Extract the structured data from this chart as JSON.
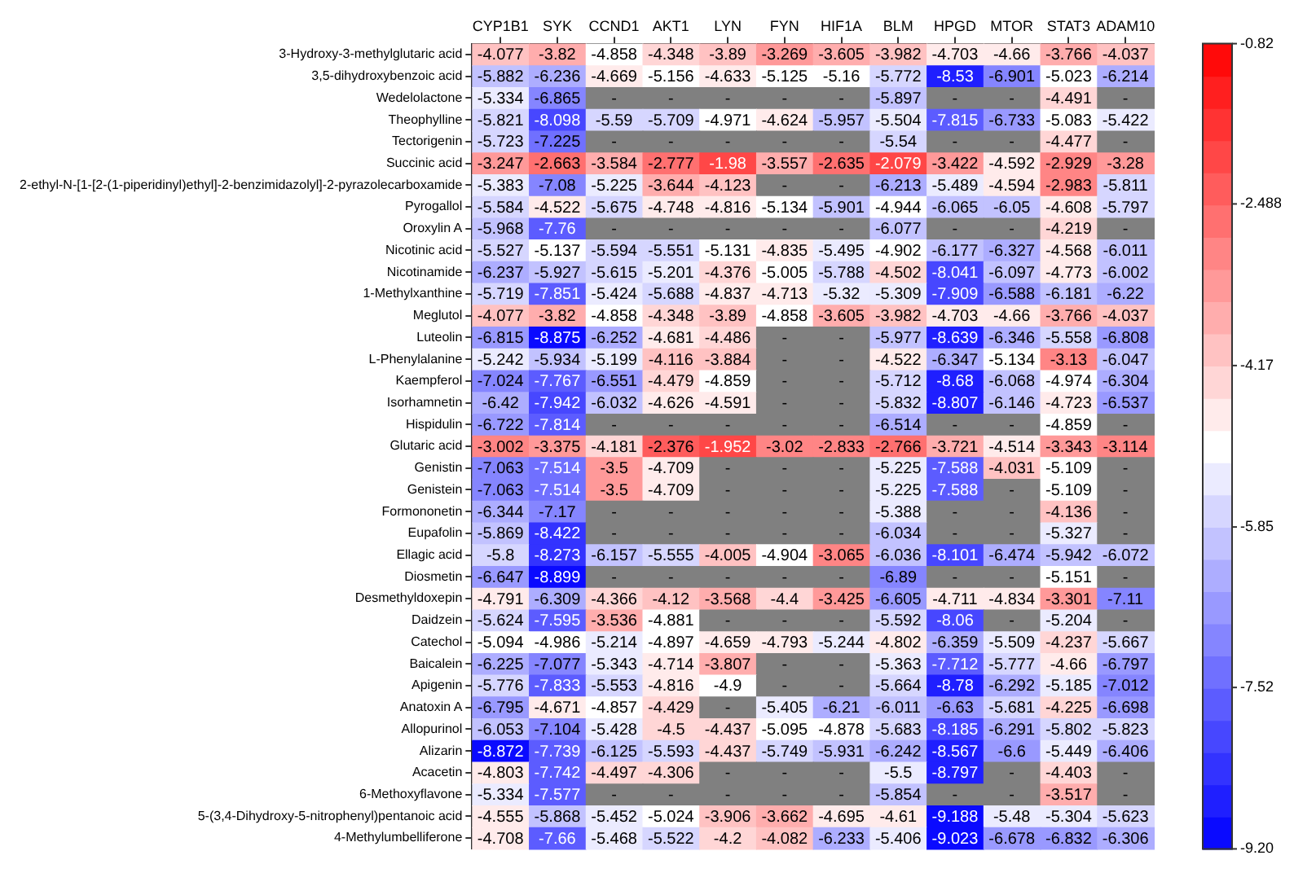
{
  "chart_data": {
    "type": "heatmap",
    "categories": [
      "CYP1B1",
      "SYK",
      "CCND1",
      "AKT1",
      "LYN",
      "FYN",
      "HIF1A",
      "BLM",
      "HPGD",
      "MTOR",
      "STAT3",
      "ADAM10"
    ],
    "y_categories": [
      "3-Hydroxy-3-methylglutaric acid",
      "3,5-dihydroxybenzoic acid",
      "Wedelolactone",
      "Theophylline",
      "Tectorigenin",
      "Succinic acid",
      "2-ethyl-N-[1-[2-(1-piperidinyl)ethyl]-2-benzimidazolyl]-2-pyrazolecarboxamide",
      "Pyrogallol",
      "Oroxylin A",
      "Nicotinic acid",
      "Nicotinamide",
      "1-Methylxanthine",
      "Meglutol",
      "Luteolin",
      "L-Phenylalanine",
      "Kaempferol",
      "Isorhamnetin",
      "Hispidulin",
      "Glutaric acid",
      "Genistin",
      "Genistein",
      "Formononetin",
      "Eupafolin",
      "Ellagic acid",
      "Diosmetin",
      "Desmethyldoxepin",
      "Daidzein",
      "Catechol",
      "Baicalein",
      "Apigenin",
      "Anatoxin A",
      "Allopurinol",
      "Alizarin",
      "Acacetin",
      "6-Methoxyflavone",
      "5-(3,4-Dihydroxy-5-nitrophenyl)pentanoic acid",
      "4-Methylumbelliferone"
    ],
    "cells": [
      [
        -4.077,
        -3.82,
        -4.858,
        -4.348,
        -3.89,
        -3.269,
        -3.605,
        -3.982,
        -4.703,
        -4.66,
        -3.766,
        -4.037
      ],
      [
        -5.882,
        -6.236,
        -4.669,
        -5.156,
        -4.633,
        -5.125,
        -5.16,
        -5.772,
        -8.53,
        -6.901,
        -5.023,
        -6.214
      ],
      [
        -5.334,
        -6.865,
        null,
        null,
        null,
        null,
        null,
        -5.897,
        null,
        null,
        -4.491,
        null
      ],
      [
        -5.821,
        -8.098,
        -5.59,
        -5.709,
        -4.971,
        -4.624,
        -5.957,
        -5.504,
        -7.815,
        -6.733,
        -5.083,
        -5.422
      ],
      [
        -5.723,
        -7.225,
        null,
        null,
        null,
        null,
        null,
        -5.54,
        null,
        null,
        -4.477,
        null
      ],
      [
        -3.247,
        -2.663,
        -3.584,
        -2.777,
        -1.98,
        -3.557,
        -2.635,
        -2.079,
        -3.422,
        -4.592,
        -2.929,
        -3.28
      ],
      [
        -5.383,
        -7.08,
        -5.225,
        -3.644,
        -4.123,
        null,
        null,
        -6.213,
        -5.489,
        -4.594,
        -2.983,
        -5.811
      ],
      [
        -5.584,
        -4.522,
        -5.675,
        -4.748,
        -4.816,
        -5.134,
        -5.901,
        -4.944,
        -6.065,
        -6.05,
        -4.608,
        -5.797
      ],
      [
        -5.968,
        -7.76,
        null,
        null,
        null,
        null,
        null,
        -6.077,
        null,
        null,
        -4.219,
        null
      ],
      [
        -5.527,
        -5.137,
        -5.594,
        -5.551,
        -5.131,
        -4.835,
        -5.495,
        -4.902,
        -6.177,
        -6.327,
        -4.568,
        -6.011
      ],
      [
        -6.237,
        -5.927,
        -5.615,
        -5.201,
        -4.376,
        -5.005,
        -5.788,
        -4.502,
        -8.041,
        -6.097,
        -4.773,
        -6.002
      ],
      [
        -5.719,
        -7.851,
        -5.424,
        -5.688,
        -4.837,
        -4.713,
        -5.32,
        -5.309,
        -7.909,
        -6.588,
        -6.181,
        -6.22
      ],
      [
        -4.077,
        -3.82,
        -4.858,
        -4.348,
        -3.89,
        -4.858,
        -3.605,
        -3.982,
        -4.703,
        -4.66,
        -3.766,
        -4.037
      ],
      [
        -6.815,
        -8.875,
        -6.252,
        -4.681,
        -4.486,
        null,
        null,
        -5.977,
        -8.639,
        -6.346,
        -5.558,
        -6.808
      ],
      [
        -5.242,
        -5.934,
        -5.199,
        -4.116,
        -3.884,
        null,
        null,
        -4.522,
        -6.347,
        -5.134,
        -3.13,
        -6.047
      ],
      [
        -7.024,
        -7.767,
        -6.551,
        -4.479,
        -4.859,
        null,
        null,
        -5.712,
        -8.68,
        -6.068,
        -4.974,
        -6.304
      ],
      [
        -6.42,
        -7.942,
        -6.032,
        -4.626,
        -4.591,
        null,
        null,
        -5.832,
        -8.807,
        -6.146,
        -4.723,
        -6.537
      ],
      [
        -6.722,
        -7.814,
        null,
        null,
        null,
        null,
        null,
        -6.514,
        null,
        null,
        -4.859,
        null
      ],
      [
        -3.002,
        -3.375,
        -4.181,
        -2.376,
        -1.952,
        -3.02,
        -2.833,
        -2.766,
        -3.721,
        -4.514,
        -3.343,
        -3.114
      ],
      [
        -7.063,
        -7.514,
        -3.5,
        -4.709,
        null,
        null,
        null,
        -5.225,
        -7.588,
        -4.031,
        -5.109,
        null
      ],
      [
        -7.063,
        -7.514,
        -3.5,
        -4.709,
        null,
        null,
        null,
        -5.225,
        -7.588,
        null,
        -5.109,
        null
      ],
      [
        -6.344,
        -7.17,
        null,
        null,
        null,
        null,
        null,
        -5.388,
        null,
        null,
        -4.136,
        null
      ],
      [
        -5.869,
        -8.422,
        null,
        null,
        null,
        null,
        null,
        -6.034,
        null,
        null,
        -5.327,
        null
      ],
      [
        -5.8,
        -8.273,
        -6.157,
        -5.555,
        -4.005,
        -4.904,
        -3.065,
        -6.036,
        -8.101,
        -6.474,
        -5.942,
        -6.072
      ],
      [
        -6.647,
        -8.899,
        null,
        null,
        null,
        null,
        null,
        -6.89,
        null,
        null,
        -5.151,
        null
      ],
      [
        -4.791,
        -6.309,
        -4.366,
        -4.12,
        -3.568,
        -4.4,
        -3.425,
        -6.605,
        -4.711,
        -4.834,
        -3.301,
        -7.11
      ],
      [
        -5.624,
        -7.595,
        -3.536,
        -4.881,
        null,
        null,
        null,
        -5.592,
        -8.06,
        null,
        -5.204,
        null
      ],
      [
        -5.094,
        -4.986,
        -5.214,
        -4.897,
        -4.659,
        -4.793,
        -5.244,
        -4.802,
        -6.359,
        -5.509,
        -4.237,
        -5.667
      ],
      [
        -6.225,
        -7.077,
        -5.343,
        -4.714,
        -3.807,
        null,
        null,
        -5.363,
        -7.712,
        -5.777,
        -4.66,
        -6.797
      ],
      [
        -5.776,
        -7.833,
        -5.553,
        -4.816,
        -4.9,
        null,
        null,
        -5.664,
        -8.78,
        -6.292,
        -5.185,
        -7.012
      ],
      [
        -6.795,
        -4.671,
        -4.857,
        -4.429,
        null,
        -5.405,
        -6.21,
        -6.011,
        -6.63,
        -5.681,
        -4.225,
        -6.698
      ],
      [
        -6.053,
        -7.104,
        -5.428,
        -4.5,
        -4.437,
        -5.095,
        -4.878,
        -5.683,
        -8.185,
        -6.291,
        -5.802,
        -5.823
      ],
      [
        -8.872,
        -7.739,
        -6.125,
        -5.593,
        -4.437,
        -5.749,
        -5.931,
        -6.242,
        -8.567,
        -6.6,
        -5.449,
        -6.406
      ],
      [
        -4.803,
        -7.742,
        -4.497,
        -4.306,
        null,
        null,
        null,
        -5.5,
        -8.797,
        null,
        -4.403,
        null
      ],
      [
        -5.334,
        -7.577,
        null,
        null,
        null,
        null,
        null,
        -5.854,
        null,
        null,
        -3.517,
        null
      ],
      [
        -4.555,
        -5.868,
        -5.452,
        -5.024,
        -3.906,
        -3.662,
        -4.695,
        -4.61,
        -9.188,
        -5.48,
        -5.304,
        -5.623
      ],
      [
        -4.708,
        -7.66,
        -5.468,
        -5.522,
        -4.2,
        -4.082,
        -6.233,
        -5.406,
        -9.023,
        -6.678,
        -6.832,
        -6.306
      ]
    ],
    "cell_labels": [
      [
        "-4.077",
        "-3.82",
        "-4.858",
        "-4.348",
        "-3.89",
        "-3.269",
        "-3.605",
        "-3.982",
        "-4.703",
        "-4.66",
        "-3.766",
        "-4.037"
      ],
      [
        "-5.882",
        "-6.236",
        "-4.669",
        "-5.156",
        "-4.633",
        "-5.125",
        "-5.16",
        "-5.772",
        "-8.53",
        "-6.901",
        "-5.023",
        "-6.214"
      ],
      [
        "-5.334",
        "-6.865",
        "-",
        "-",
        "-",
        "-",
        "-",
        "-5.897",
        "-",
        "-",
        "-4.491",
        "-"
      ],
      [
        "-5.821",
        "-8.098",
        "-5.59",
        "-5.709",
        "-4.971",
        "-4.624",
        "-5.957",
        "-5.504",
        "-7.815",
        "-6.733",
        "-5.083",
        "-5.422"
      ],
      [
        "-5.723",
        "-7.225",
        "-",
        "-",
        "-",
        "-",
        "-",
        "-5.54",
        "-",
        "-",
        "-4.477",
        "-"
      ],
      [
        "-3.247",
        "-2.663",
        "-3.584",
        "-2.777",
        "-1.98",
        "-3.557",
        "-2.635",
        "-2.079",
        "-3.422",
        "-4.592",
        "-2.929",
        "-3.28"
      ],
      [
        "-5.383",
        "-7.08",
        "-5.225",
        "-3.644",
        "-4.123",
        "-",
        "-",
        "-6.213",
        "-5.489",
        "-4.594",
        "-2.983",
        "-5.811"
      ],
      [
        "-5.584",
        "-4.522",
        "-5.675",
        "-4.748",
        "-4.816",
        "-5.134",
        "-5.901",
        "-4.944",
        "-6.065",
        "-6.05",
        "-4.608",
        "-5.797"
      ],
      [
        "-5.968",
        "-7.76",
        "-",
        "-",
        "-",
        "-",
        "-",
        "-6.077",
        "-",
        "-",
        "-4.219",
        "-"
      ],
      [
        "-5.527",
        "-5.137",
        "-5.594",
        "-5.551",
        "-5.131",
        "-4.835",
        "-5.495",
        "-4.902",
        "-6.177",
        "-6.327",
        "-4.568",
        "-6.011"
      ],
      [
        "-6.237",
        "-5.927",
        "-5.615",
        "-5.201",
        "-4.376",
        "-5.005",
        "-5.788",
        "-4.502",
        "-8.041",
        "-6.097",
        "-4.773",
        "-6.002"
      ],
      [
        "-5.719",
        "-7.851",
        "-5.424",
        "-5.688",
        "-4.837",
        "-4.713",
        "-5.32",
        "-5.309",
        "-7.909",
        "-6.588",
        "-6.181",
        "-6.22"
      ],
      [
        "-4.077",
        "-3.82",
        "-4.858",
        "-4.348",
        "-3.89",
        "-4.858",
        "-3.605",
        "-3.982",
        "-4.703",
        "-4.66",
        "-3.766",
        "-4.037"
      ],
      [
        "-6.815",
        "-8.875",
        "-6.252",
        "-4.681",
        "-4.486",
        "-",
        "-",
        "-5.977",
        "-8.639",
        "-6.346",
        "-5.558",
        "-6.808"
      ],
      [
        "-5.242",
        "-5.934",
        "-5.199",
        "-4.116",
        "-3.884",
        "-",
        "-",
        "-4.522",
        "-6.347",
        "-5.134",
        "-3.13",
        "-6.047"
      ],
      [
        "-7.024",
        "-7.767",
        "-6.551",
        "-4.479",
        "-4.859",
        "-",
        "-",
        "-5.712",
        "-8.68",
        "-6.068",
        "-4.974",
        "-6.304"
      ],
      [
        "-6.42",
        "-7.942",
        "-6.032",
        "-4.626",
        "-4.591",
        "-",
        "-",
        "-5.832",
        "-8.807",
        "-6.146",
        "-4.723",
        "-6.537"
      ],
      [
        "-6.722",
        "-7.814",
        "-",
        "-",
        "-",
        "-",
        "-",
        "-6.514",
        "-",
        "-",
        "-4.859",
        "-"
      ],
      [
        "-3.002",
        "-3.375",
        "-4.181",
        "-2.376",
        "-1.952",
        "-3.02",
        "-2.833",
        "-2.766",
        "-3.721",
        "-4.514",
        "-3.343",
        "-3.114"
      ],
      [
        "-7.063",
        "-7.514",
        "-3.5",
        "-4.709",
        "-",
        "-",
        "-",
        "-5.225",
        "-7.588",
        "-4.031",
        "-5.109",
        "-"
      ],
      [
        "-7.063",
        "-7.514",
        "-3.5",
        "-4.709",
        "-",
        "-",
        "-",
        "-5.225",
        "-7.588",
        "-",
        "-5.109",
        "-"
      ],
      [
        "-6.344",
        "-7.17",
        "-",
        "-",
        "-",
        "-",
        "-",
        "-5.388",
        "-",
        "-",
        "-4.136",
        "-"
      ],
      [
        "-5.869",
        "-8.422",
        "-",
        "-",
        "-",
        "-",
        "-",
        "-6.034",
        "-",
        "-",
        "-5.327",
        "-"
      ],
      [
        "-5.8",
        "-8.273",
        "-6.157",
        "-5.555",
        "-4.005",
        "-4.904",
        "-3.065",
        "-6.036",
        "-8.101",
        "-6.474",
        "-5.942",
        "-6.072"
      ],
      [
        "-6.647",
        "-8.899",
        "-",
        "-",
        "-",
        "-",
        "-",
        "-6.89",
        "-",
        "-",
        "-5.151",
        "-"
      ],
      [
        "-4.791",
        "-6.309",
        "-4.366",
        "-4.12",
        "-3.568",
        "-4.4",
        "-3.425",
        "-6.605",
        "-4.711",
        "-4.834",
        "-3.301",
        "-7.11"
      ],
      [
        "-5.624",
        "-7.595",
        "-3.536",
        "-4.881",
        "-",
        "-",
        "-",
        "-5.592",
        "-8.06",
        "-",
        "-5.204",
        "-"
      ],
      [
        "-5.094",
        "-4.986",
        "-5.214",
        "-4.897",
        "-4.659",
        "-4.793",
        "-5.244",
        "-4.802",
        "-6.359",
        "-5.509",
        "-4.237",
        "-5.667"
      ],
      [
        "-6.225",
        "-7.077",
        "-5.343",
        "-4.714",
        "-3.807",
        "-",
        "-",
        "-5.363",
        "-7.712",
        "-5.777",
        "-4.66",
        "-6.797"
      ],
      [
        "-5.776",
        "-7.833",
        "-5.553",
        "-4.816",
        "-4.9",
        "-",
        "-",
        "-5.664",
        "-8.78",
        "-6.292",
        "-5.185",
        "-7.012"
      ],
      [
        "-6.795",
        "-4.671",
        "-4.857",
        "-4.429",
        "-",
        "-5.405",
        "-6.21",
        "-6.011",
        "-6.63",
        "-5.681",
        "-4.225",
        "-6.698"
      ],
      [
        "-6.053",
        "-7.104",
        "-5.428",
        "-4.5",
        "-4.437",
        "-5.095",
        "-4.878",
        "-5.683",
        "-8.185",
        "-6.291",
        "-5.802",
        "-5.823"
      ],
      [
        "-8.872",
        "-7.739",
        "-6.125",
        "-5.593",
        "-4.437",
        "-5.749",
        "-5.931",
        "-6.242",
        "-8.567",
        "-6.6",
        "-5.449",
        "-6.406"
      ],
      [
        "-4.803",
        "-7.742",
        "-4.497",
        "-4.306",
        "-",
        "-",
        "-",
        "-5.5",
        "-8.797",
        "-",
        "-4.403",
        "-"
      ],
      [
        "-5.334",
        "-7.577",
        "-",
        "-",
        "-",
        "-",
        "-",
        "-5.854",
        "-",
        "-",
        "-3.517",
        "-"
      ],
      [
        "-4.555",
        "-5.868",
        "-5.452",
        "-5.024",
        "-3.906",
        "-3.662",
        "-4.695",
        "-4.61",
        "-9.188",
        "-5.48",
        "-5.304",
        "-5.623"
      ],
      [
        "-4.708",
        "-7.66",
        "-5.468",
        "-5.522",
        "-4.2",
        "-4.082",
        "-6.233",
        "-5.406",
        "-9.023",
        "-6.678",
        "-6.832",
        "-6.306"
      ]
    ],
    "clim": [
      -9.2,
      -0.82
    ],
    "cticks": [
      -0.82,
      -2.488,
      -4.17,
      -5.85,
      -7.52,
      {
        "value": -9.2,
        "label": "-9.20"
      }
    ]
  }
}
